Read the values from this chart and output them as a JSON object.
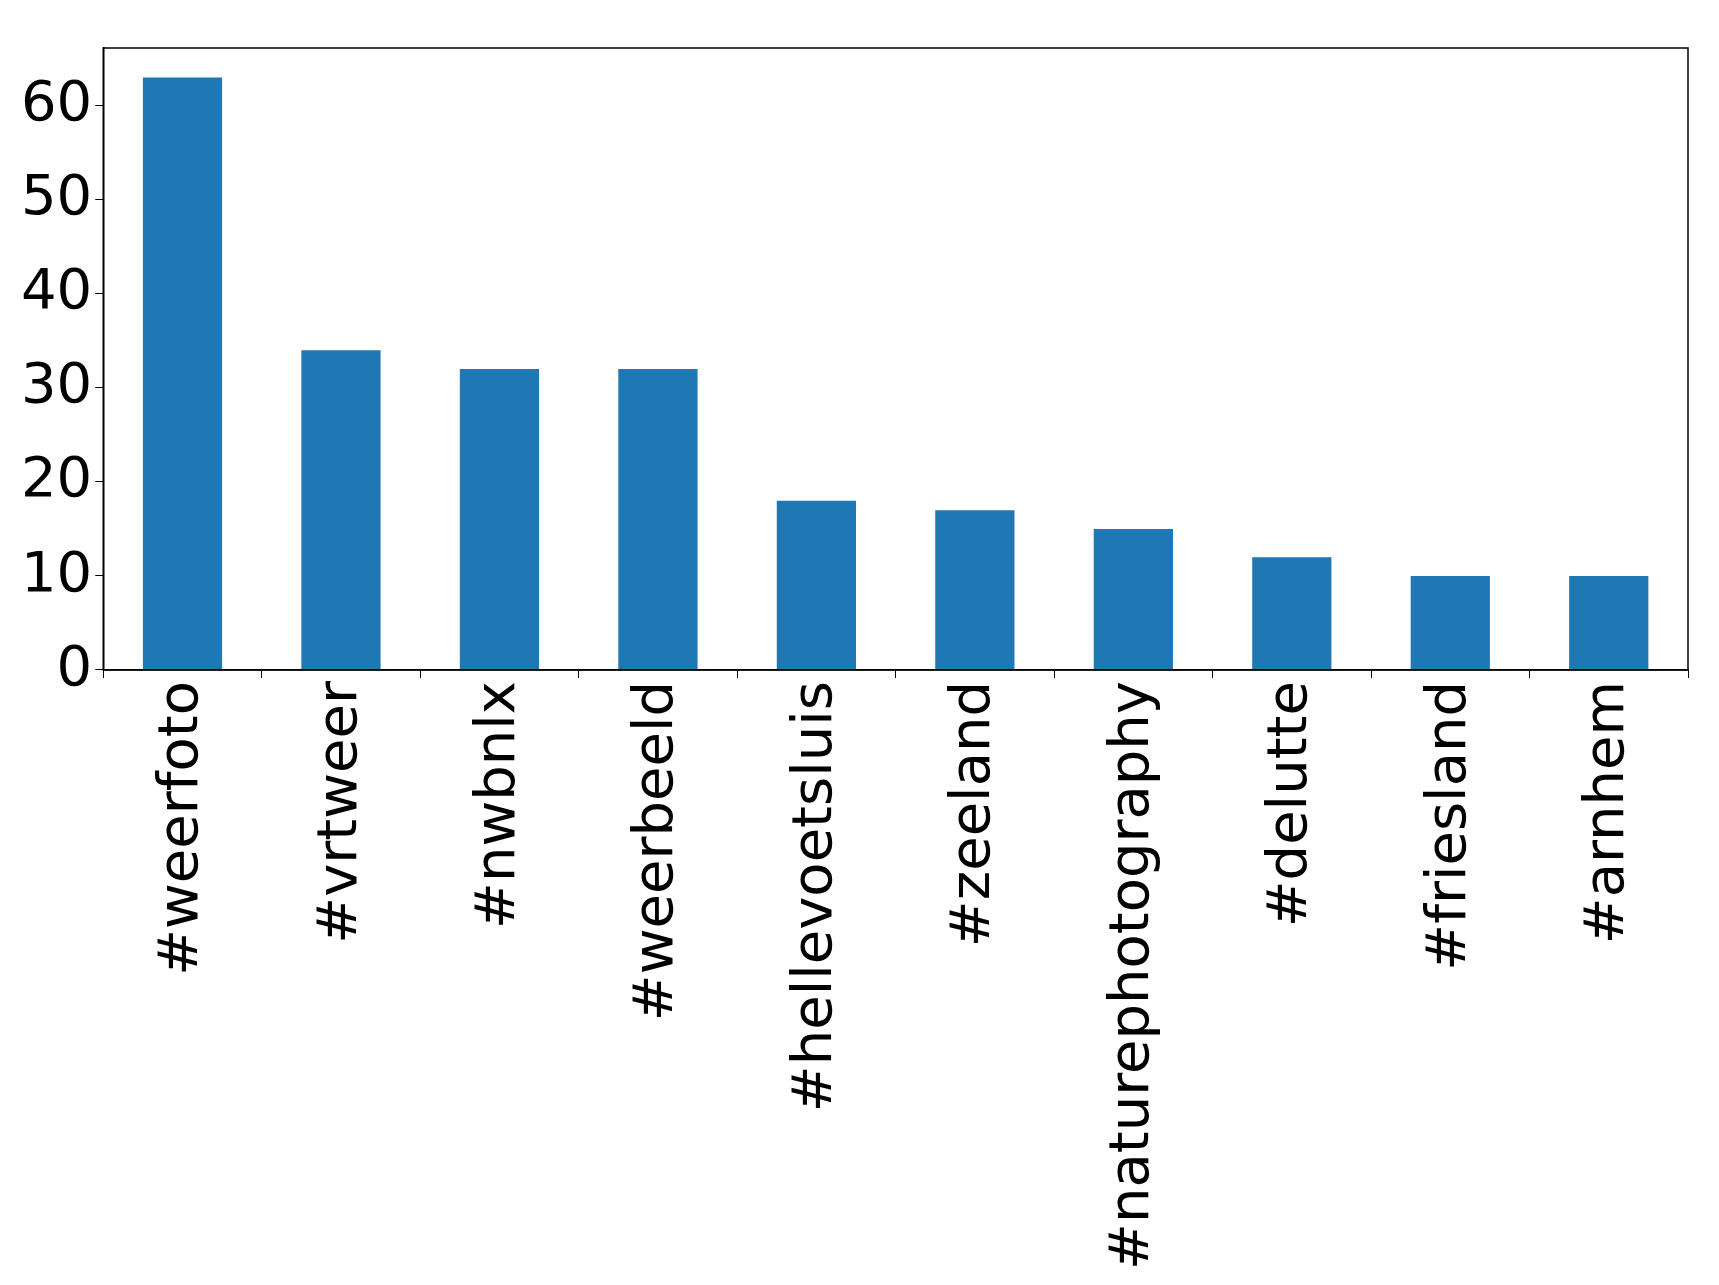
{
  "chart_data": {
    "type": "bar",
    "categories": [
      "#weerfoto",
      "#vrtweer",
      "#nwbnlx",
      "#weerbeeld",
      "#hellevoetsluis",
      "#zeeland",
      "#naturephotography",
      "#delutte",
      "#friesland",
      "#arnhem"
    ],
    "values": [
      63,
      34,
      32,
      32,
      18,
      17,
      15,
      12,
      10,
      10
    ],
    "color": "#1f77b4",
    "ylim": [
      0,
      66.15
    ],
    "yticks": [
      0,
      10,
      20,
      30,
      40,
      50,
      60
    ],
    "grid": false,
    "legend": false
  }
}
